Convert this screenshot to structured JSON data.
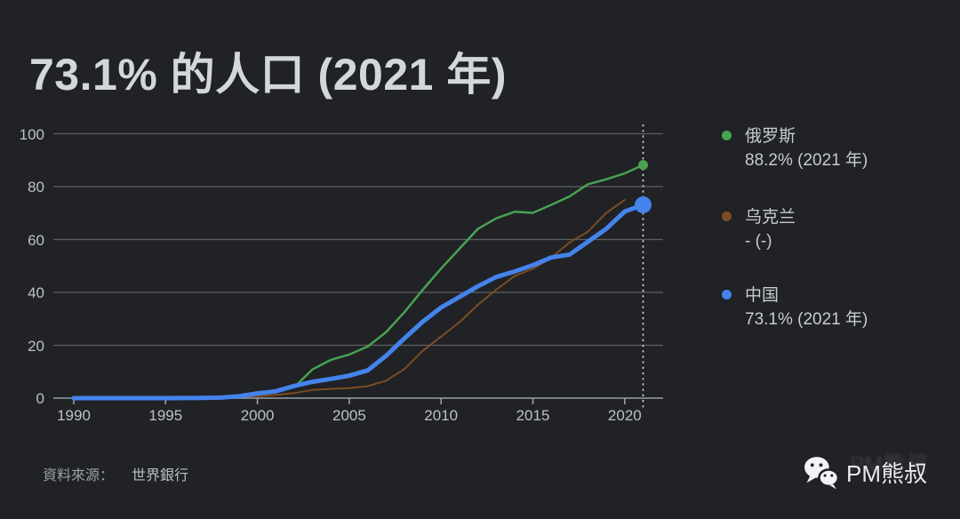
{
  "page": {
    "background": "#202226"
  },
  "header": {
    "title": "73.1% 的人口 (2021 年)"
  },
  "legend": {
    "items": [
      {
        "key": "russia",
        "name": "俄罗斯",
        "value": "88.2% (2021 年)",
        "color": "#48a251"
      },
      {
        "key": "ukraine",
        "name": "乌克兰",
        "value": "- (-)",
        "color": "#7d4d22"
      },
      {
        "key": "china",
        "name": "中国",
        "value": "73.1% (2021 年)",
        "color": "#4583ec"
      }
    ]
  },
  "footer": {
    "source_label": "資料來源：",
    "source_value": "世界銀行",
    "watermark": "PM熊叔",
    "watermark_ghost": "PM熊叔"
  },
  "chart_data": {
    "type": "line",
    "title": "73.1% 的人口 (2021 年)",
    "xlabel": "",
    "ylabel": "",
    "xlim": [
      1990,
      2021
    ],
    "ylim": [
      0,
      100
    ],
    "x_ticks": [
      1990,
      1995,
      2000,
      2005,
      2010,
      2015,
      2020
    ],
    "y_ticks": [
      0,
      20,
      40,
      60,
      80,
      100
    ],
    "grid": true,
    "legend_position": "right",
    "cursor_year": 2021,
    "colors": {
      "grid": "#5c6064",
      "axis": "#9aa0a6",
      "cursor": "#d8dadd"
    },
    "series": [
      {
        "key": "russia",
        "name": "俄罗斯",
        "color": "#48a251",
        "width": 2.5,
        "end_marker": true,
        "marker_r": 5.5,
        "end_label": "88.2% (2021 年)",
        "points": [
          [
            1990,
            0
          ],
          [
            1994,
            0.1
          ],
          [
            1995,
            0.15
          ],
          [
            1996,
            0.25
          ],
          [
            1997,
            0.35
          ],
          [
            1998,
            0.55
          ],
          [
            1999,
            1
          ],
          [
            2000,
            2
          ],
          [
            2001,
            2.9
          ],
          [
            2002,
            4.1
          ],
          [
            2003,
            10.9
          ],
          [
            2004,
            14.5
          ],
          [
            2005,
            16.5
          ],
          [
            2006,
            19.5
          ],
          [
            2007,
            24.9
          ],
          [
            2008,
            32.5
          ],
          [
            2009,
            41
          ],
          [
            2010,
            49
          ],
          [
            2011,
            56.5
          ],
          [
            2012,
            64
          ],
          [
            2013,
            68
          ],
          [
            2014,
            70.5
          ],
          [
            2015,
            70.1
          ],
          [
            2016,
            73.1
          ],
          [
            2017,
            76.3
          ],
          [
            2018,
            80.9
          ],
          [
            2019,
            82.8
          ],
          [
            2020,
            85
          ],
          [
            2021,
            88.2
          ]
        ]
      },
      {
        "key": "ukraine",
        "name": "乌克兰",
        "color": "#7d4d22",
        "width": 2,
        "end_marker": false,
        "end_label": "- (-)",
        "points": [
          [
            1990,
            0
          ],
          [
            1995,
            0.1
          ],
          [
            1998,
            0.4
          ],
          [
            1999,
            0.6
          ],
          [
            2000,
            0.7
          ],
          [
            2001,
            1.2
          ],
          [
            2002,
            1.9
          ],
          [
            2003,
            3.1
          ],
          [
            2004,
            3.5
          ],
          [
            2005,
            3.8
          ],
          [
            2006,
            4.5
          ],
          [
            2007,
            6.6
          ],
          [
            2008,
            11
          ],
          [
            2009,
            17.9
          ],
          [
            2010,
            23.3
          ],
          [
            2011,
            28.7
          ],
          [
            2012,
            35.3
          ],
          [
            2013,
            41
          ],
          [
            2014,
            46.2
          ],
          [
            2015,
            48.9
          ],
          [
            2016,
            53.1
          ],
          [
            2017,
            58.9
          ],
          [
            2018,
            63
          ],
          [
            2019,
            70.1
          ],
          [
            2020,
            75
          ]
        ]
      },
      {
        "key": "china",
        "name": "中国",
        "color": "#4583ec",
        "width": 5,
        "end_marker": true,
        "marker_r": 9.5,
        "end_label": "73.1% (2021 年)",
        "points": [
          [
            1990,
            0
          ],
          [
            1995,
            0
          ],
          [
            1996,
            0.05
          ],
          [
            1997,
            0.1
          ],
          [
            1998,
            0.2
          ],
          [
            1999,
            0.7
          ],
          [
            2000,
            1.8
          ],
          [
            2001,
            2.6
          ],
          [
            2002,
            4.6
          ],
          [
            2003,
            6.2
          ],
          [
            2004,
            7.3
          ],
          [
            2005,
            8.5
          ],
          [
            2006,
            10.5
          ],
          [
            2007,
            16
          ],
          [
            2008,
            22.6
          ],
          [
            2009,
            28.9
          ],
          [
            2010,
            34.3
          ],
          [
            2011,
            38.3
          ],
          [
            2012,
            42.3
          ],
          [
            2013,
            45.8
          ],
          [
            2014,
            47.9
          ],
          [
            2015,
            50.3
          ],
          [
            2016,
            53.2
          ],
          [
            2017,
            54.3
          ],
          [
            2018,
            59.2
          ],
          [
            2019,
            64.1
          ],
          [
            2020,
            70.6
          ],
          [
            2021,
            73.1
          ]
        ]
      }
    ]
  }
}
